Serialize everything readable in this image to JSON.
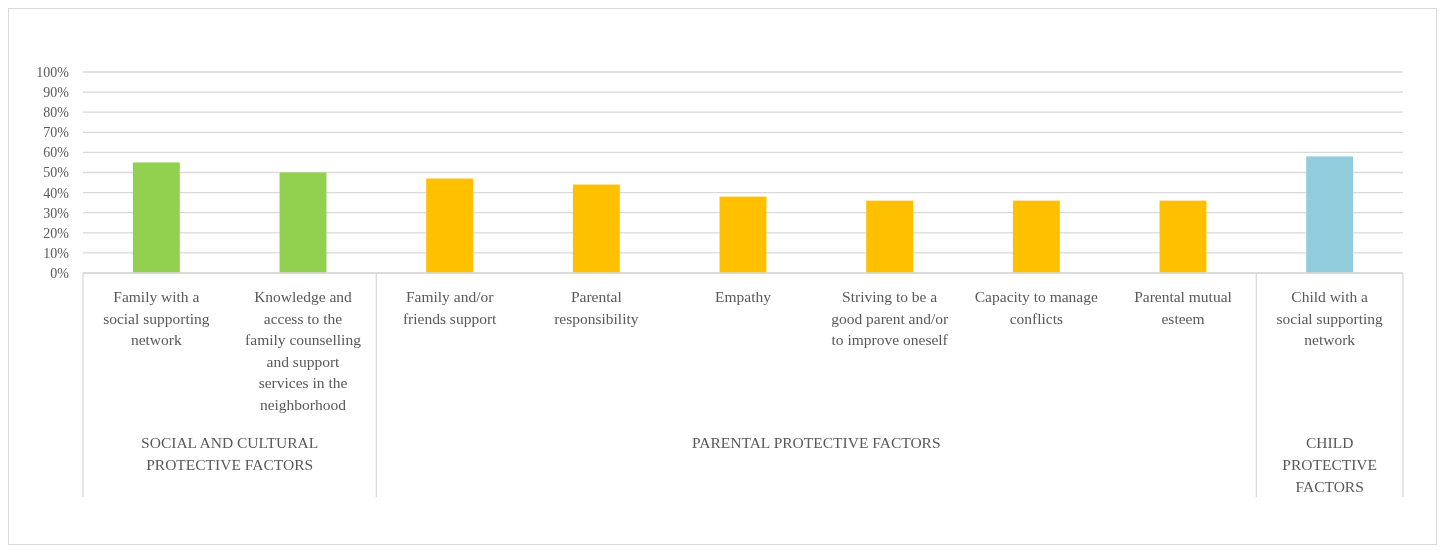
{
  "chart_data": {
    "type": "bar",
    "categories": [
      "Family with a social supporting network",
      "Knowledge and access to the family counselling and support services in the neighborhood",
      "Family and/or friends support",
      "Parental responsibility",
      "Empathy",
      "Striving to be a good parent and/or to improve oneself",
      "Capacity to manage conflicts",
      "Parental mutual esteem",
      "Child with a social supporting network"
    ],
    "values": [
      55,
      50,
      47,
      44,
      38,
      36,
      36,
      36,
      58
    ],
    "colors": [
      "#92d050",
      "#92d050",
      "#ffc000",
      "#ffc000",
      "#ffc000",
      "#ffc000",
      "#ffc000",
      "#ffc000",
      "#92cddd"
    ],
    "ylim": [
      0,
      100
    ],
    "yticks": [
      {
        "value": 0,
        "label": "0%"
      },
      {
        "value": 10,
        "label": "10%"
      },
      {
        "value": 20,
        "label": "20%"
      },
      {
        "value": 30,
        "label": "30%"
      },
      {
        "value": 40,
        "label": "40%"
      },
      {
        "value": 50,
        "label": "50%"
      },
      {
        "value": 60,
        "label": "60%"
      },
      {
        "value": 70,
        "label": "70%"
      },
      {
        "value": 80,
        "label": "80%"
      },
      {
        "value": 90,
        "label": "90%"
      },
      {
        "value": 100,
        "label": "100%"
      }
    ],
    "grid": "y",
    "annotations": [
      "SOCIAL AND CULTURAL PROTECTIVE FACTORS",
      "PARENTAL PROTECTIVE FACTORS",
      "CHILD PROTECTIVE FACTORS"
    ]
  }
}
